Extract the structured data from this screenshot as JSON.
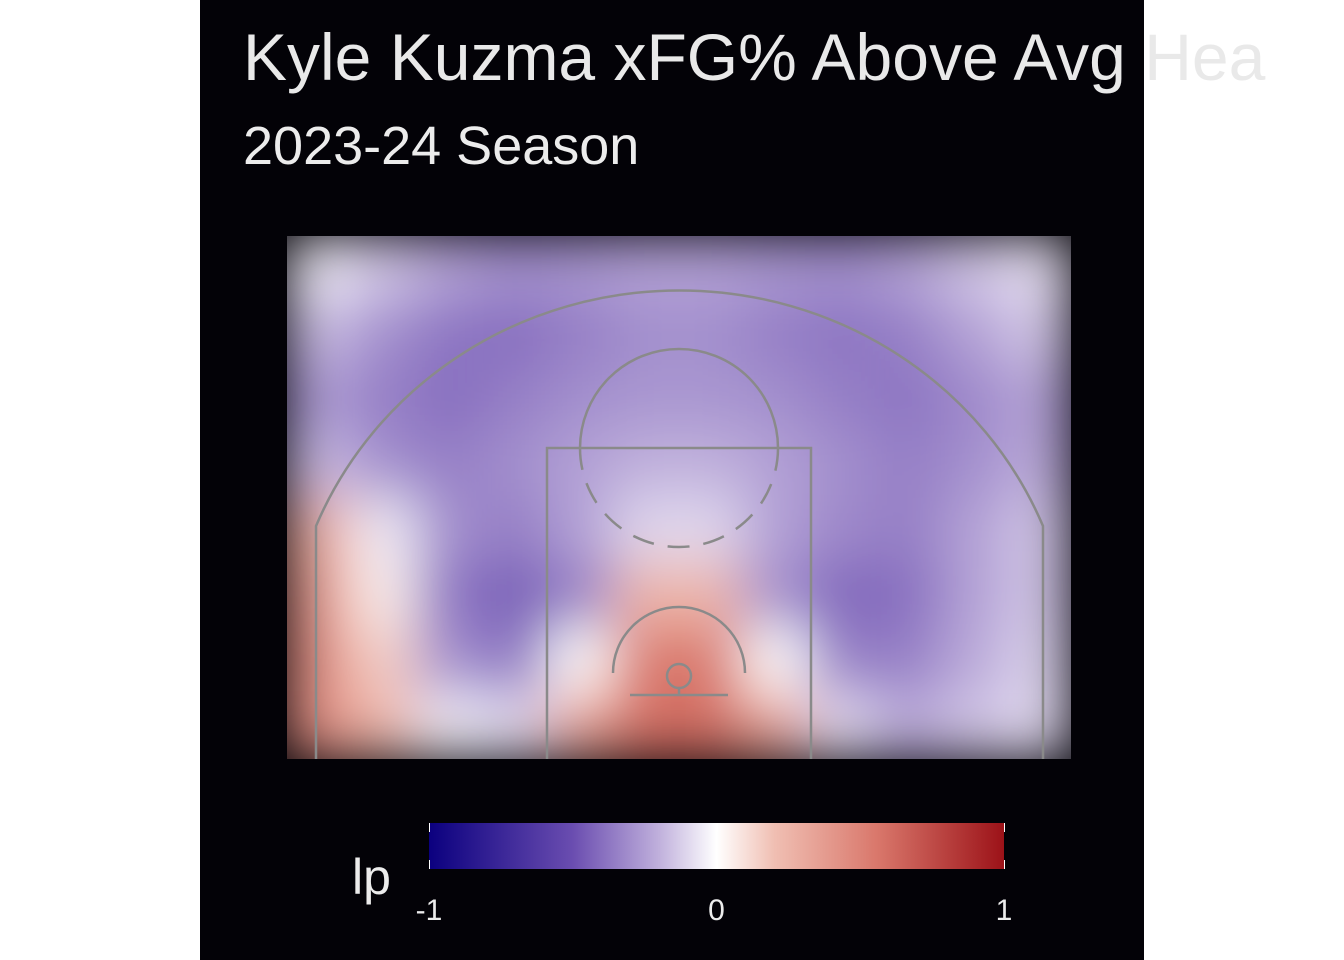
{
  "chart_data": {
    "type": "heatmap",
    "title": "Kyle Kuzma xFG% Above Avg Hea",
    "subtitle": "2023-24 Season",
    "legend": {
      "title": "lp",
      "position": "bottom",
      "range": [
        -1,
        1
      ],
      "ticks": [
        "-1",
        "0",
        "1"
      ],
      "colors": {
        "low": "#0b007f",
        "mid": "#ffffff",
        "high": "#9c1218"
      }
    },
    "grid": false,
    "values": [
      [
        -0.05,
        -0.15,
        -0.25,
        -0.3,
        -0.28,
        -0.25,
        -0.25,
        -0.28,
        -0.3,
        -0.25,
        -0.15,
        -0.08
      ],
      [
        -0.18,
        -0.3,
        -0.38,
        -0.4,
        -0.35,
        -0.3,
        -0.3,
        -0.35,
        -0.38,
        -0.35,
        -0.25,
        -0.15
      ],
      [
        -0.28,
        -0.35,
        -0.4,
        -0.35,
        -0.3,
        -0.28,
        -0.28,
        -0.3,
        -0.35,
        -0.38,
        -0.32,
        -0.25
      ],
      [
        -0.18,
        -0.3,
        -0.35,
        -0.3,
        -0.25,
        -0.2,
        -0.2,
        -0.25,
        -0.3,
        -0.35,
        -0.3,
        -0.22
      ],
      [
        0.3,
        -0.05,
        -0.3,
        -0.35,
        -0.25,
        -0.1,
        -0.1,
        -0.25,
        -0.32,
        -0.35,
        -0.25,
        -0.15
      ],
      [
        0.4,
        0.05,
        -0.38,
        -0.45,
        -0.35,
        0.25,
        0.25,
        -0.3,
        -0.42,
        -0.4,
        -0.25,
        -0.15
      ],
      [
        0.45,
        0.15,
        -0.3,
        -0.38,
        0.0,
        0.55,
        0.55,
        0.0,
        -0.35,
        -0.35,
        -0.22,
        -0.12
      ],
      [
        0.45,
        0.25,
        -0.05,
        -0.1,
        0.35,
        0.6,
        0.6,
        0.35,
        -0.1,
        -0.22,
        -0.15,
        -0.1
      ]
    ]
  }
}
